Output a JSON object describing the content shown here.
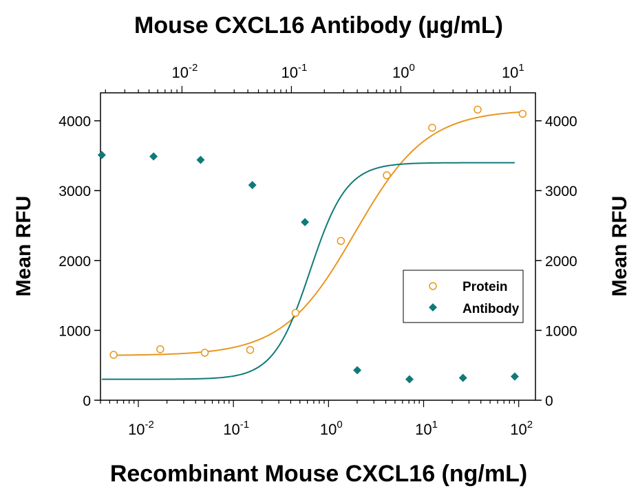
{
  "chart_data": {
    "type": "scatter",
    "title_top": "Mouse CXCL16 Antibody (µg/mL)",
    "xlabel": "Recombinant Mouse CXCL16 (ng/mL)",
    "ylabel_left": "Mean RFU",
    "ylabel_right": "Mean RFU",
    "x_scale": "log",
    "x_bottom_range": [
      0.004,
      150
    ],
    "x_top_range": [
      0.0018,
      17
    ],
    "ylim": [
      0,
      4400
    ],
    "y_ticks": [
      {
        "value": 0,
        "label": "0"
      },
      {
        "value": 1000,
        "label": "1000"
      },
      {
        "value": 2000,
        "label": "2000"
      },
      {
        "value": 3000,
        "label": "3000"
      },
      {
        "value": 4000,
        "label": "4000"
      }
    ],
    "x_bottom_ticks": [
      {
        "value": 0.01,
        "base": "10",
        "exp": "-2"
      },
      {
        "value": 0.1,
        "base": "10",
        "exp": "-1"
      },
      {
        "value": 1,
        "base": "10",
        "exp": "0"
      },
      {
        "value": 10,
        "base": "10",
        "exp": "1"
      },
      {
        "value": 100,
        "base": "10",
        "exp": "2"
      }
    ],
    "x_top_ticks": [
      {
        "value": 0.01,
        "base": "10",
        "exp": "-2"
      },
      {
        "value": 0.1,
        "base": "10",
        "exp": "-1"
      },
      {
        "value": 1,
        "base": "10",
        "exp": "0"
      },
      {
        "value": 10,
        "base": "10",
        "exp": "1"
      }
    ],
    "legend_position": "right",
    "series": [
      {
        "name": "Protein",
        "axis": "bottom",
        "marker": "open-circle",
        "color": "#e8961e",
        "x": [
          0.0055,
          0.017,
          0.05,
          0.15,
          0.45,
          1.35,
          4.1,
          12.3,
          37,
          110
        ],
        "y": [
          650,
          730,
          680,
          720,
          1250,
          2280,
          3220,
          3900,
          4160,
          4100
        ],
        "fit": {
          "bottom": 640,
          "top": 4160,
          "ec50": 1.9,
          "hill": 1.15
        }
      },
      {
        "name": "Antibody",
        "axis": "top",
        "marker": "filled-diamond",
        "color": "#0f7a78",
        "x": [
          0.00185,
          0.0055,
          0.0148,
          0.044,
          0.133,
          0.4,
          1.2,
          3.7,
          11
        ],
        "y": [
          3510,
          3490,
          3440,
          3080,
          2550,
          430,
          300,
          320,
          340
        ],
        "fit": {
          "bottom": 300,
          "top": 3400,
          "ec50": 0.148,
          "hill": 2.6
        }
      }
    ]
  }
}
